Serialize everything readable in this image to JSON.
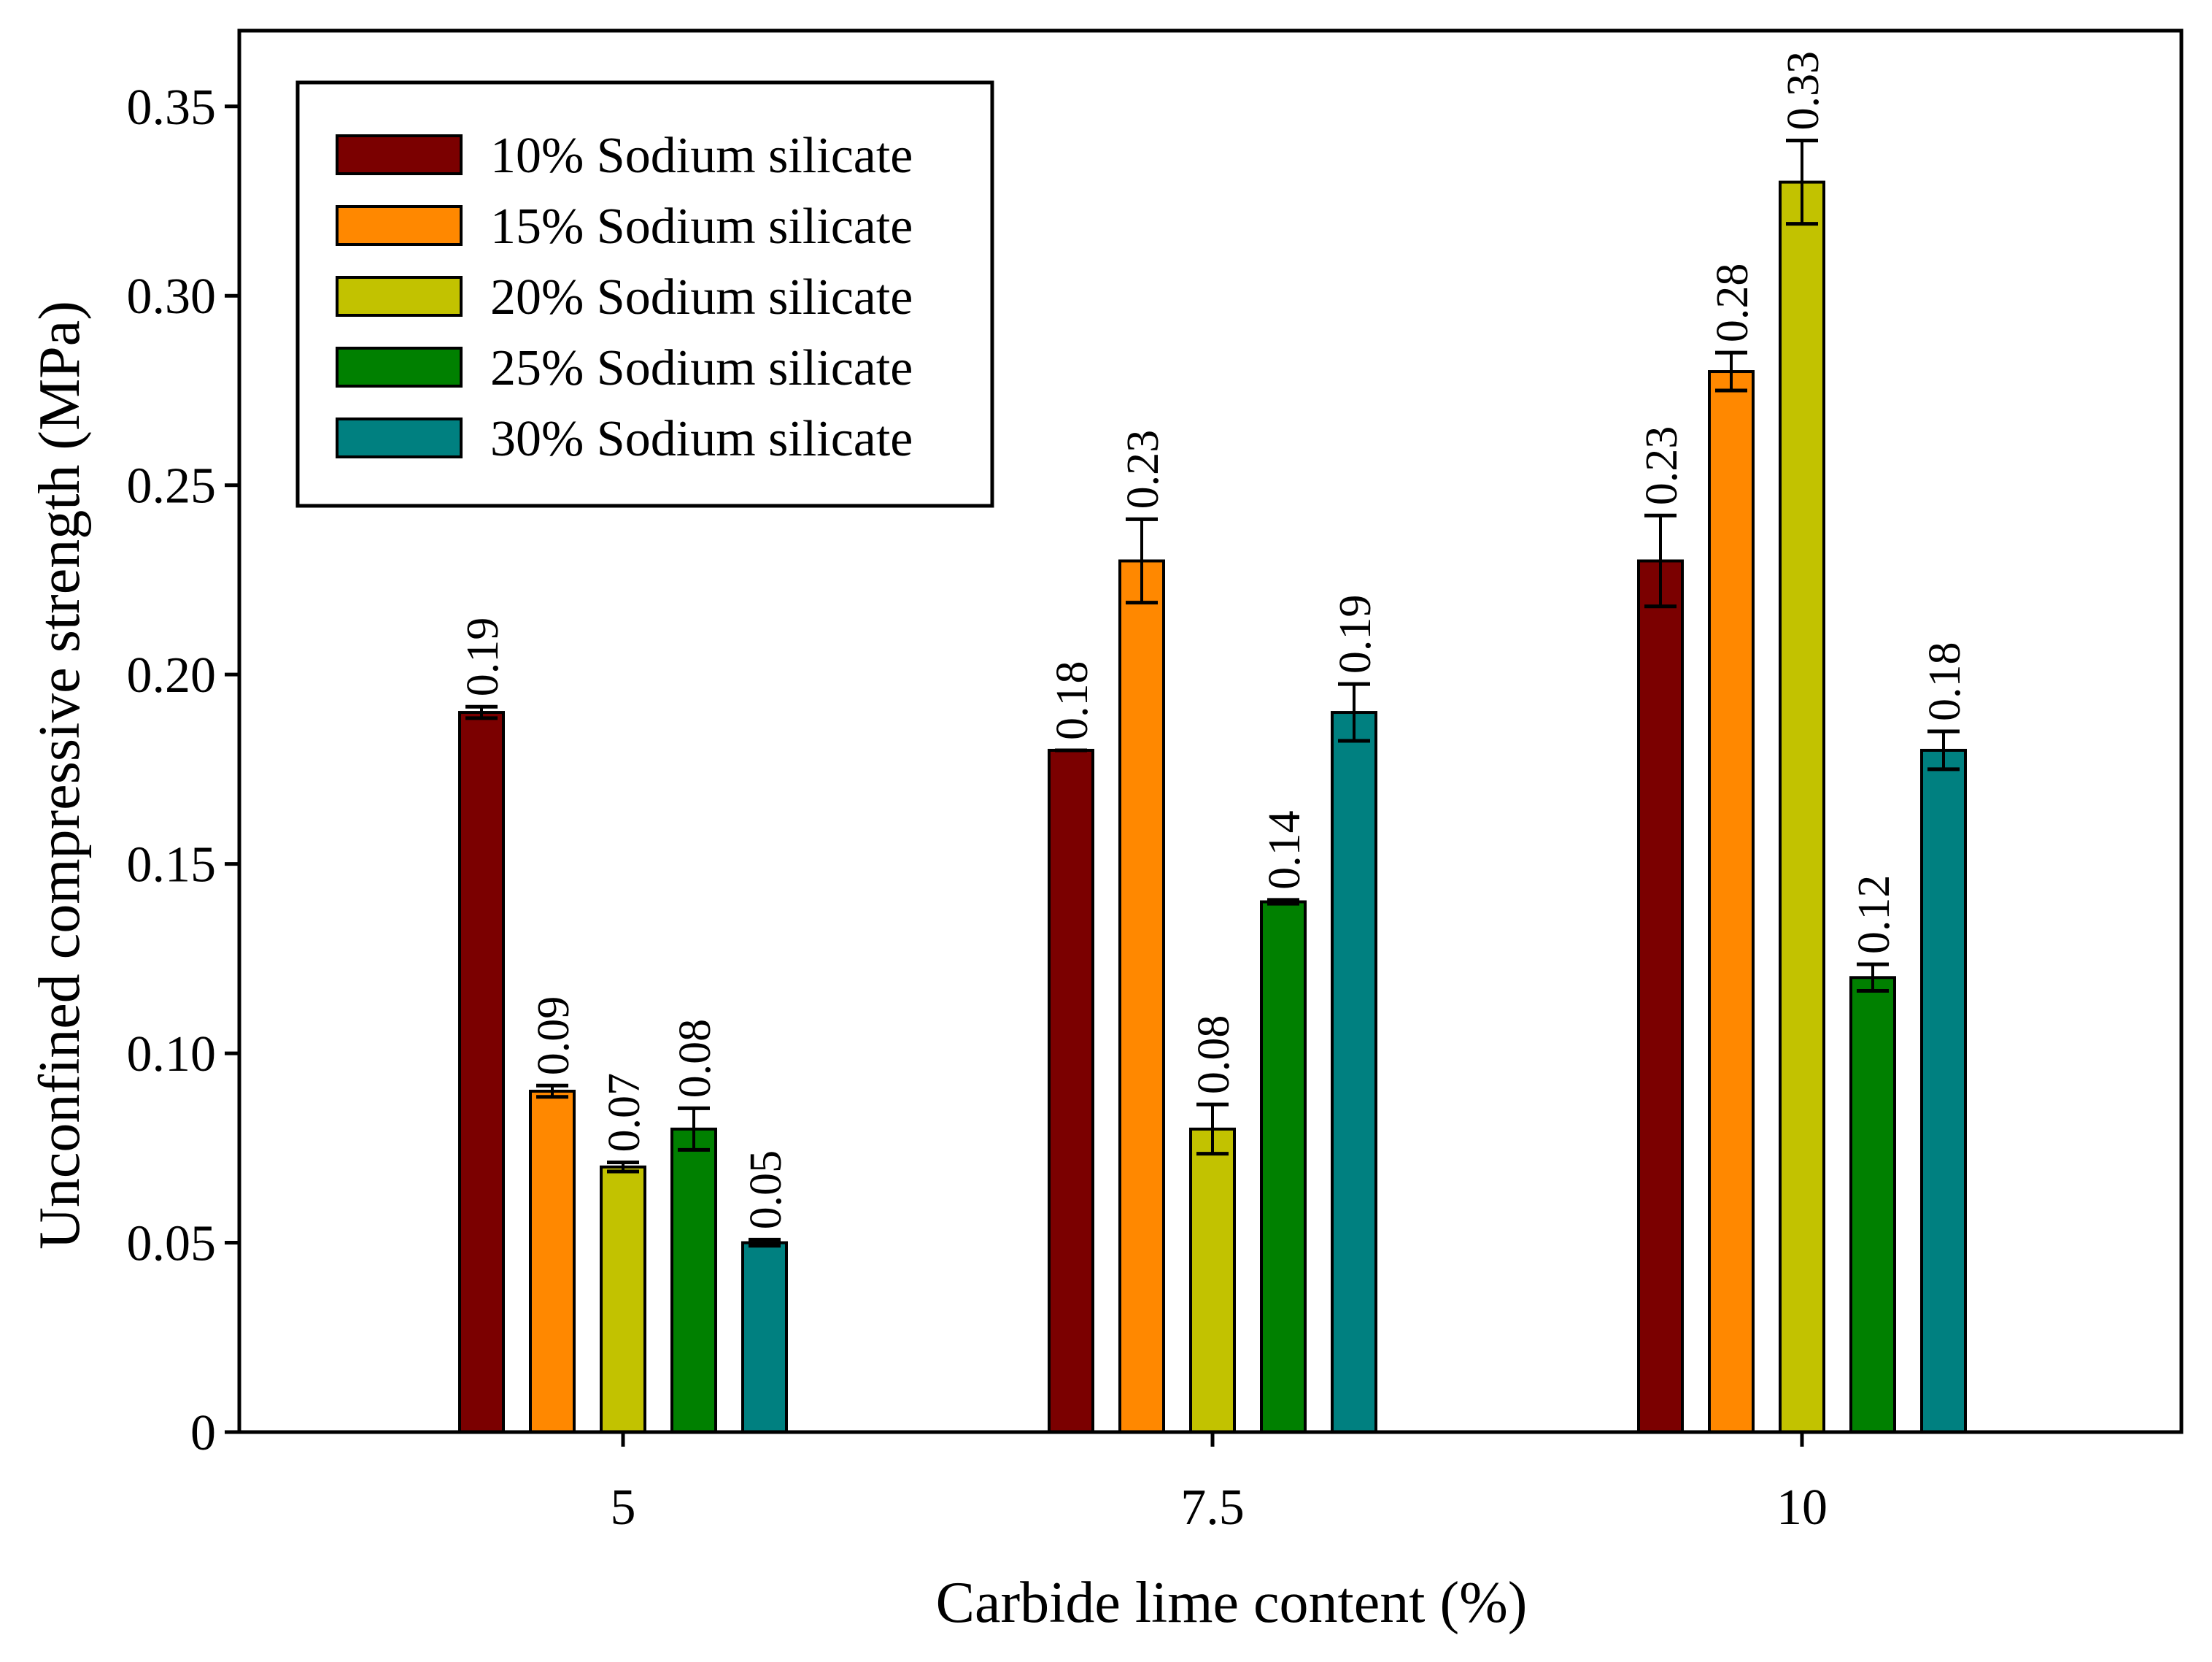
{
  "chart_data": {
    "type": "bar",
    "xlabel": "Carbide lime content (%)",
    "ylabel": "Unconfined compressive strength (MPa)",
    "ylim": [
      0,
      0.37
    ],
    "yticks": [
      0,
      0.05,
      0.1,
      0.15,
      0.2,
      0.25,
      0.3,
      0.35
    ],
    "ytick_labels": [
      "0",
      "0.05",
      "0.10",
      "0.15",
      "0.20",
      "0.25",
      "0.30",
      "0.35"
    ],
    "categories": [
      "5",
      "7.5",
      "10"
    ],
    "legend_position": "top-left",
    "series": [
      {
        "name": "10% Sodium silicate",
        "color": "#7b0000",
        "values": [
          0.19,
          0.18,
          0.23
        ],
        "labels": [
          "0.19",
          "0.18",
          "0.23"
        ],
        "errors": [
          0.0015,
          0.0,
          0.012
        ]
      },
      {
        "name": "15% Sodium silicate",
        "color": "#ff8800",
        "values": [
          0.09,
          0.23,
          0.28
        ],
        "labels": [
          "0.09",
          "0.23",
          "0.28"
        ],
        "errors": [
          0.0015,
          0.011,
          0.005
        ]
      },
      {
        "name": "20% Sodium silicate",
        "color": "#c2c200",
        "values": [
          0.07,
          0.08,
          0.33
        ],
        "labels": [
          "0.07",
          "0.08",
          "0.33"
        ],
        "errors": [
          0.0012,
          0.0065,
          0.011
        ]
      },
      {
        "name": "25% Sodium silicate",
        "color": "#008000",
        "values": [
          0.08,
          0.14,
          0.12
        ],
        "labels": [
          "0.08",
          "0.14",
          "0.12"
        ],
        "errors": [
          0.0055,
          0.0005,
          0.0035
        ]
      },
      {
        "name": "30% Sodium silicate",
        "color": "#008080",
        "values": [
          0.05,
          0.19,
          0.18
        ],
        "labels": [
          "0.05",
          "0.19",
          "0.18"
        ],
        "errors": [
          0.0008,
          0.0075,
          0.005
        ]
      }
    ]
  }
}
